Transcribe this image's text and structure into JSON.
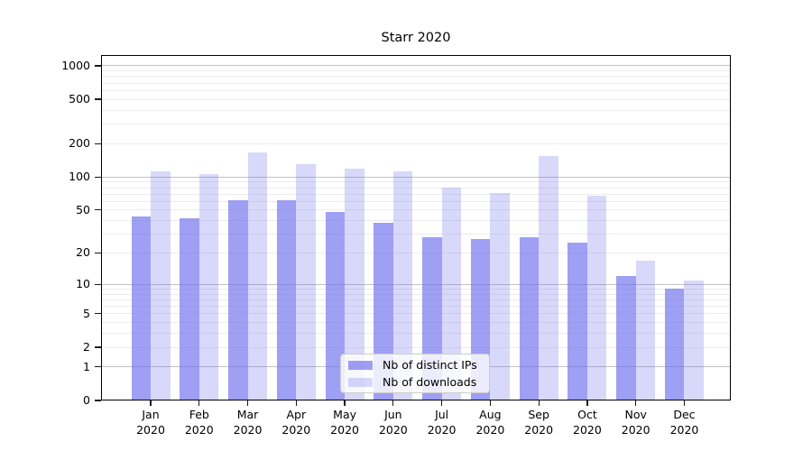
{
  "title": "Starr 2020",
  "chart_data": {
    "type": "bar",
    "title": "Starr 2020",
    "categories": [
      "Jan",
      "Feb",
      "Mar",
      "Apr",
      "May",
      "Jun",
      "Jul",
      "Aug",
      "Sep",
      "Oct",
      "Nov",
      "Dec"
    ],
    "x_tick_line2": "2020",
    "series": [
      {
        "name": "Nb of distinct IPs",
        "values": [
          44,
          42,
          61,
          61,
          48,
          38,
          28,
          27,
          28,
          25,
          12,
          9
        ]
      },
      {
        "name": "Nb of downloads",
        "values": [
          113,
          107,
          166,
          131,
          118,
          113,
          80,
          71,
          155,
          68,
          17,
          11
        ]
      }
    ],
    "xlabel": "",
    "ylabel": "",
    "yscale": "log(1+y)",
    "y_ticks": [
      0,
      1,
      2,
      5,
      10,
      20,
      50,
      100,
      200,
      500,
      1000
    ],
    "y_axis_max": 1250,
    "grid": true,
    "legend_position": "lower center"
  },
  "colors": {
    "series": [
      "rgba(110,110,237,0.66)",
      "rgba(110,110,237,0.27)"
    ],
    "major_grid": "#c2c2c2",
    "minor_grid": "#ececec",
    "axis": "#000000",
    "legend_border": "#cccccc"
  }
}
